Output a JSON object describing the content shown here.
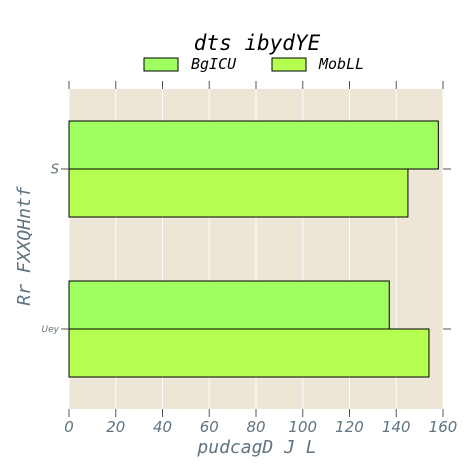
{
  "chart_data": {
    "type": "bar",
    "orientation": "horizontal",
    "title": "dts ibydYE",
    "xlabel": "pudcagD J L",
    "ylabel": "Rr FXXQHntf",
    "categories": [
      "S",
      "Uey"
    ],
    "series": [
      {
        "name": "BgICU",
        "values": [
          158,
          137
        ],
        "color": "#a0ff60"
      },
      {
        "name": "MobLL",
        "values": [
          145,
          154
        ],
        "color": "#b4ff50"
      }
    ],
    "xlim": [
      0,
      160
    ],
    "xticks": [
      "0",
      "20",
      "40",
      "60",
      "80",
      "100",
      "120",
      "140",
      "160"
    ],
    "grid": true,
    "legend_position": "top",
    "plot_background": "#ede5d6",
    "grid_color": "#ffffff",
    "tick_label_color": "#5f7380"
  }
}
